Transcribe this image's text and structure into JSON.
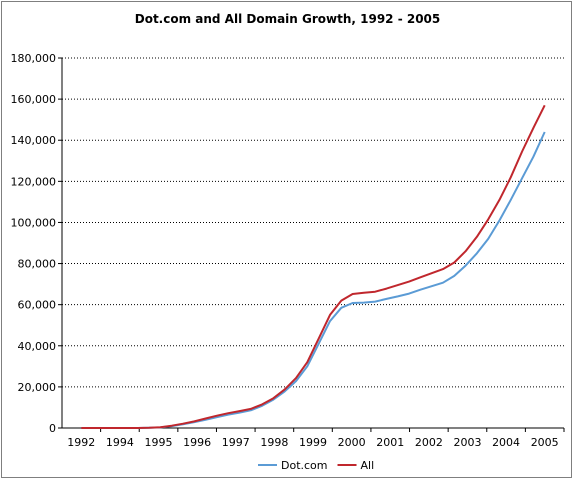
{
  "chart_data": {
    "type": "line",
    "title": "Dot.com and All Domain Growth, 1992 - 2005",
    "xlabel": "",
    "ylabel": "",
    "x_tick_labels": [
      "1992",
      "1994",
      "1995",
      "1996",
      "1997",
      "1998",
      "1999",
      "2000",
      "2001",
      "2002",
      "2003",
      "2004",
      "2005"
    ],
    "y_tick_labels": [
      "0",
      "20,000",
      "40,000",
      "60,000",
      "80,000",
      "100,000",
      "120,000",
      "140,000",
      "160,000",
      "180,000"
    ],
    "ylim": [
      0,
      180000
    ],
    "grid": "horizontal dotted",
    "legend_position": "bottom",
    "series": [
      {
        "name": "Dot.com",
        "color": "#5b9bd5",
        "values": [
          0,
          0,
          0,
          0,
          0,
          0,
          100,
          300,
          900,
          1800,
          2800,
          4000,
          5300,
          6500,
          7500,
          8600,
          10800,
          13800,
          17800,
          22800,
          30000,
          41000,
          52000,
          58500,
          60800,
          61000,
          61500,
          62800,
          64000,
          65400,
          67300,
          69000,
          70700,
          74000,
          79000,
          85000,
          92000,
          101000,
          111000,
          121500,
          132000,
          144000
        ],
        "end": 144000
      },
      {
        "name": "All",
        "color": "#c0272d",
        "values": [
          0,
          0,
          0,
          0,
          0,
          0,
          100,
          400,
          1100,
          2100,
          3200,
          4600,
          6000,
          7200,
          8200,
          9300,
          11500,
          14500,
          18800,
          24300,
          32000,
          43500,
          55000,
          62000,
          65200,
          65800,
          66300,
          67800,
          69500,
          71200,
          73300,
          75300,
          77300,
          80500,
          86000,
          93000,
          101500,
          111000,
          122000,
          134500,
          146000,
          157000
        ],
        "end": 157000
      }
    ]
  }
}
